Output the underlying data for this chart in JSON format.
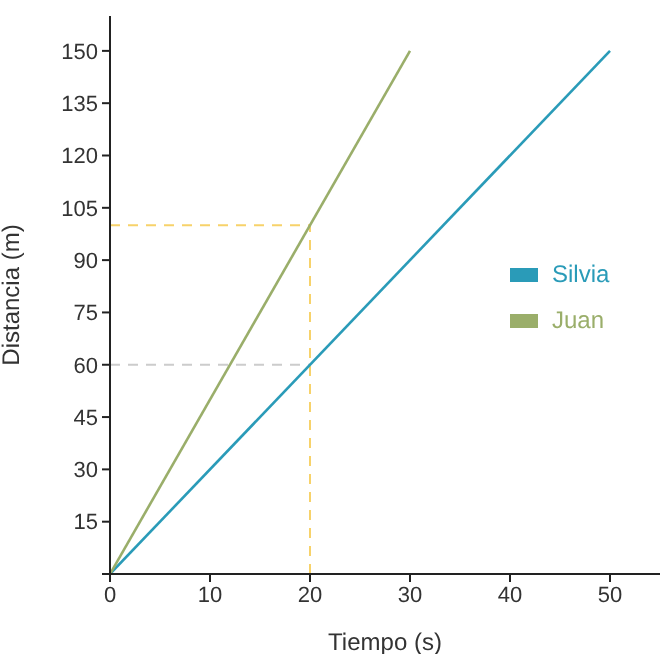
{
  "chart_data": {
    "type": "line",
    "xlabel": "Tiempo (s)",
    "ylabel": "Distancia (m)",
    "series": [
      {
        "name": "Silvia",
        "color": "#2a9bb8",
        "x": [
          0,
          50
        ],
        "values": [
          0,
          150
        ]
      },
      {
        "name": "Juan",
        "color": "#9aae6a",
        "x": [
          0,
          30
        ],
        "values": [
          0,
          150
        ]
      }
    ],
    "xlim": [
      0,
      55
    ],
    "xticks": [
      0,
      10,
      20,
      30,
      40,
      50
    ],
    "ylim": [
      0,
      160
    ],
    "yticks": [
      {
        "value": 0,
        "label": null
      },
      15,
      30,
      45,
      60,
      75,
      90,
      105,
      120,
      135,
      150
    ],
    "ref_lines": [
      {
        "axis": "y",
        "value": 100,
        "color": "#f7d26a",
        "line_style": "dashed"
      },
      {
        "axis": "y",
        "value": 60,
        "color": "#cccccc",
        "line_style": "dashed"
      },
      {
        "axis": "x",
        "value": 20,
        "color": "#f7d26a",
        "line_style": "dashed"
      }
    ],
    "grid": false,
    "legend": "right",
    "marker": "none",
    "line_style": "solid"
  }
}
